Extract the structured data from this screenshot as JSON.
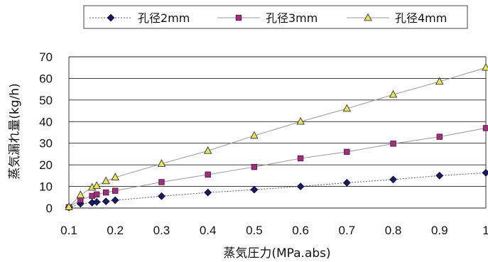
{
  "chart_data": {
    "type": "scatter",
    "title": "",
    "xlabel": "蒸気圧力(MPa.abs)",
    "ylabel": "蒸気漏れ量(kg/h)",
    "xlim": [
      0.1,
      1
    ],
    "ylim": [
      0,
      70
    ],
    "x_ticks": [
      "0.1",
      "0.2",
      "0.3",
      "0.4",
      "0.5",
      "0.6",
      "0.7",
      "0.8",
      "0.9",
      "1"
    ],
    "y_ticks": [
      "0",
      "10",
      "20",
      "30",
      "40",
      "50",
      "60",
      "70"
    ],
    "grid": true,
    "legend_position": "top",
    "series": [
      {
        "name": "孔径2mm",
        "marker": "diamond",
        "color": "#1a1a5e",
        "line_style": "dashed",
        "x": [
          0.1,
          0.125,
          0.15,
          0.16,
          0.18,
          0.2,
          0.3,
          0.4,
          0.5,
          0.6,
          0.7,
          0.8,
          0.9,
          1.0
        ],
        "y": [
          0.3,
          2.0,
          2.5,
          2.8,
          3.1,
          3.6,
          5.5,
          7.2,
          8.5,
          10.0,
          11.7,
          13.2,
          15.0,
          16.3
        ]
      },
      {
        "name": "孔径3mm",
        "marker": "square",
        "color": "#a0307a",
        "line_style": "solid",
        "x": [
          0.1,
          0.125,
          0.15,
          0.16,
          0.18,
          0.2,
          0.3,
          0.4,
          0.5,
          0.6,
          0.7,
          0.8,
          0.9,
          1.0
        ],
        "y": [
          0.4,
          3.8,
          5.6,
          6.3,
          7.2,
          8.0,
          12.0,
          15.5,
          19.0,
          23.0,
          26.0,
          29.8,
          33.0,
          37.0
        ]
      },
      {
        "name": "孔径4mm",
        "marker": "triangle",
        "color": "#e6e65a",
        "line_style": "solid",
        "x": [
          0.1,
          0.125,
          0.15,
          0.16,
          0.18,
          0.2,
          0.3,
          0.4,
          0.5,
          0.6,
          0.7,
          0.8,
          0.9,
          1.0
        ],
        "y": [
          0.5,
          6.0,
          9.5,
          10.3,
          12.5,
          14.2,
          20.5,
          26.5,
          33.5,
          40.0,
          46.0,
          52.5,
          58.5,
          65.0
        ]
      }
    ]
  }
}
